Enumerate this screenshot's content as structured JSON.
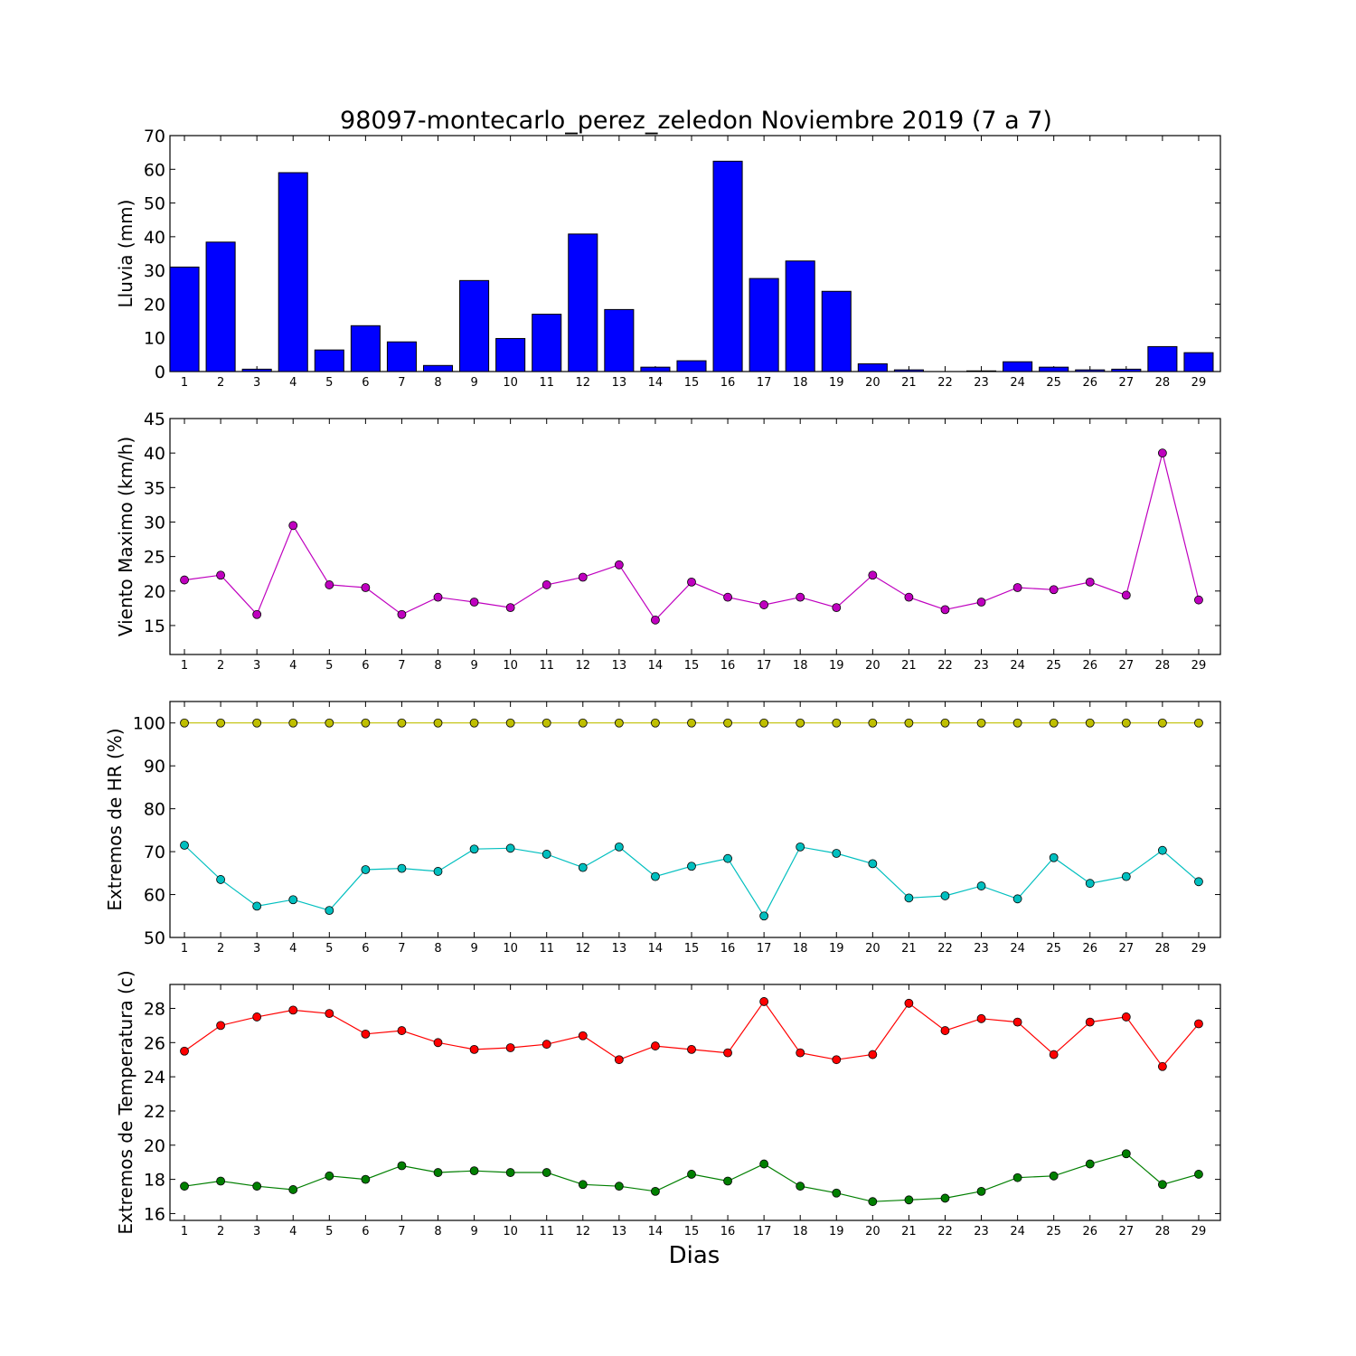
{
  "chart_data": {
    "title": "98097-montecarlo_perez_zeledon Noviembre 2019  (7 a 7)",
    "xlabel": "Dias",
    "days": [
      1,
      2,
      3,
      4,
      5,
      6,
      7,
      8,
      9,
      10,
      11,
      12,
      13,
      14,
      15,
      16,
      17,
      18,
      19,
      20,
      21,
      22,
      23,
      24,
      25,
      26,
      27,
      28,
      29
    ],
    "panels": [
      {
        "type": "bar",
        "ylabel": "Lluvia (mm)",
        "ylim": [
          0,
          70
        ],
        "yticks": [
          0,
          10,
          20,
          30,
          40,
          50,
          60,
          70
        ],
        "series": [
          {
            "color": "#0000ff",
            "values": [
              31,
              38.4,
              0.7,
              59,
              6.4,
              13.6,
              8.8,
              1.8,
              27,
              9.8,
              17,
              40.8,
              18.4,
              1.3,
              3.2,
              62.4,
              27.6,
              32.8,
              23.8,
              2.3,
              0.5,
              0,
              0.2,
              2.9,
              1.3,
              0.5,
              0.7,
              7.4,
              5.6
            ]
          }
        ]
      },
      {
        "type": "line",
        "ylabel": "Viento Maximo (km/h)",
        "ylim": [
          10.8,
          45
        ],
        "yticks": [
          15,
          20,
          25,
          30,
          35,
          40,
          45
        ],
        "series": [
          {
            "color": "#bf00bf",
            "values": [
              21.6,
              22.3,
              16.6,
              29.5,
              20.9,
              20.5,
              16.6,
              19.1,
              18.4,
              17.6,
              20.9,
              22,
              23.8,
              15.8,
              21.3,
              19.1,
              18,
              19.1,
              17.6,
              22.3,
              19.1,
              17.3,
              18.4,
              20.5,
              20.2,
              21.3,
              19.4,
              40,
              18.7
            ]
          }
        ]
      },
      {
        "type": "line",
        "ylabel": "Extremos de HR (%)",
        "ylim": [
          50,
          105
        ],
        "yticks": [
          50,
          60,
          70,
          80,
          90,
          100
        ],
        "series": [
          {
            "color": "#bfbf00",
            "values": [
              100,
              100,
              100,
              100,
              100,
              100,
              100,
              100,
              100,
              100,
              100,
              100,
              100,
              100,
              100,
              100,
              100,
              100,
              100,
              100,
              100,
              100,
              100,
              100,
              100,
              100,
              100,
              100,
              100
            ]
          },
          {
            "color": "#00bfbf",
            "values": [
              71.5,
              63.5,
              57.3,
              58.8,
              56.3,
              65.8,
              66.1,
              65.4,
              70.6,
              70.8,
              69.4,
              66.3,
              71.1,
              64.2,
              66.6,
              68.4,
              55,
              71.1,
              69.6,
              67.2,
              59.2,
              59.7,
              62,
              59,
              68.6,
              62.6,
              64.2,
              70.3,
              63
            ]
          }
        ]
      },
      {
        "type": "line",
        "ylabel": "Extremos de Temperatura (c)",
        "ylim": [
          15.6,
          29.4
        ],
        "yticks": [
          16,
          18,
          20,
          22,
          24,
          26,
          28
        ],
        "series": [
          {
            "color": "#ff0000",
            "values": [
              25.5,
              27,
              27.5,
              27.9,
              27.7,
              26.5,
              26.7,
              26,
              25.6,
              25.7,
              25.9,
              26.4,
              25,
              25.8,
              25.6,
              25.4,
              28.4,
              25.4,
              25,
              25.3,
              28.3,
              26.7,
              27.4,
              27.2,
              25.3,
              27.2,
              27.5,
              24.6,
              27.1
            ]
          },
          {
            "color": "#007f00",
            "values": [
              17.6,
              17.9,
              17.6,
              17.4,
              18.2,
              18,
              18.8,
              18.4,
              18.5,
              18.4,
              18.4,
              17.7,
              17.6,
              17.3,
              18.3,
              17.9,
              18.9,
              17.6,
              17.2,
              16.7,
              16.8,
              16.9,
              17.3,
              18.1,
              18.2,
              18.9,
              19.5,
              17.7,
              18.3
            ]
          }
        ]
      }
    ]
  }
}
